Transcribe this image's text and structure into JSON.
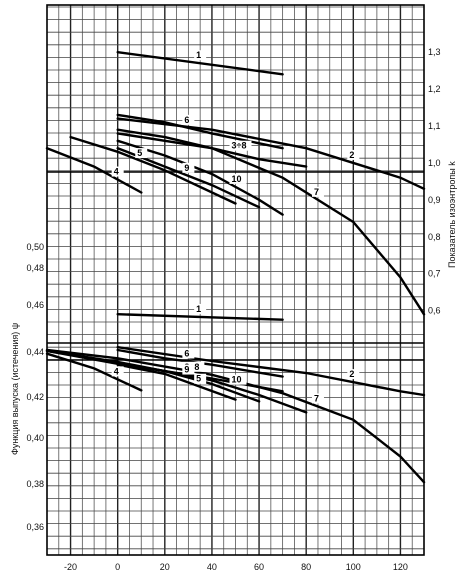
{
  "chart_data": {
    "type": "line",
    "title": "",
    "xlabel": "",
    "y_left_label": "Функция выпуска (истечения) ψ",
    "y_right_label": "Показатель изоэнтропы k",
    "x_range": [
      -30,
      130
    ],
    "x_ticks": [
      -20,
      0,
      20,
      40,
      60,
      80,
      100,
      120
    ],
    "y_left_ticks": [
      "0,50",
      "0,48",
      "0,46",
      "0,44",
      "0,42",
      "0,40",
      "0,38",
      "0,36"
    ],
    "y_right_ticks": [
      "1,3",
      "1,2",
      "1,1",
      "1,0",
      "0,9",
      "0,8",
      "0,7",
      "0,6"
    ],
    "k_axis_range": [
      0.58,
      1.36
    ],
    "psi_axis_range": [
      0.347,
      0.445
    ],
    "grid": true,
    "k_curves": [
      {
        "label": "1",
        "x": [
          0,
          70
        ],
        "y": [
          1.3,
          1.24
        ]
      },
      {
        "label": "2",
        "x": [
          0,
          40,
          80,
          120,
          130
        ],
        "y": [
          1.12,
          1.09,
          1.04,
          0.96,
          0.93
        ]
      },
      {
        "label": "6",
        "x": [
          0,
          20,
          40,
          70
        ],
        "y": [
          1.13,
          1.11,
          1.08,
          1.04
        ]
      },
      {
        "label": "3÷8",
        "x": [
          0,
          20,
          40,
          60,
          80
        ],
        "y": [
          1.09,
          1.07,
          1.04,
          1.01,
          0.99
        ]
      },
      {
        "label": "7",
        "x": [
          0,
          40,
          70,
          100,
          120,
          130
        ],
        "y": [
          1.08,
          1.04,
          0.96,
          0.84,
          0.69,
          0.59
        ]
      },
      {
        "label": "10",
        "x": [
          0,
          20,
          40,
          60,
          70
        ],
        "y": [
          1.06,
          1.02,
          0.97,
          0.9,
          0.86
        ]
      },
      {
        "label": "9",
        "x": [
          0,
          20,
          40,
          60
        ],
        "y": [
          1.04,
          0.99,
          0.94,
          0.88
        ]
      },
      {
        "label": "5",
        "x": [
          -20,
          0,
          20,
          50
        ],
        "y": [
          1.07,
          1.03,
          0.98,
          0.89
        ]
      },
      {
        "label": "4",
        "x": [
          -30,
          -10,
          10
        ],
        "y": [
          1.04,
          0.99,
          0.92
        ]
      }
    ],
    "psi_curves": [
      {
        "label": "1",
        "x": [
          0,
          70
        ],
        "y": [
          0.4645,
          0.4615
        ]
      },
      {
        "label": "2",
        "x": [
          0,
          40,
          80,
          120,
          130
        ],
        "y": [
          0.4465,
          0.439,
          0.4325,
          0.4225,
          0.4205
        ]
      },
      {
        "label": "6",
        "x": [
          0,
          20,
          40,
          70
        ],
        "y": [
          0.445,
          0.4405,
          0.437,
          0.4305
        ]
      },
      {
        "label": "3÷8",
        "x": [
          -30,
          0,
          20,
          40,
          70
        ],
        "y": [
          0.4445,
          0.4375,
          0.4335,
          0.4295,
          0.4225
        ]
      },
      {
        "label": "7",
        "x": [
          -30,
          0,
          40,
          70,
          100,
          120,
          130
        ],
        "y": [
          0.445,
          0.4405,
          0.4315,
          0.4215,
          0.407,
          0.387,
          0.373
        ]
      },
      {
        "label": "10",
        "x": [
          -30,
          0,
          40,
          60,
          80
        ],
        "y": [
          0.4445,
          0.4385,
          0.4285,
          0.4205,
          0.411
        ]
      },
      {
        "label": "9",
        "x": [
          0,
          20,
          40,
          60
        ],
        "y": [
          0.438,
          0.4335,
          0.4265,
          0.417
        ]
      },
      {
        "label": "5",
        "x": [
          0,
          20,
          50
        ],
        "y": [
          0.437,
          0.432,
          0.418
        ]
      },
      {
        "label": "4",
        "x": [
          -30,
          -10,
          10
        ],
        "y": [
          0.443,
          0.435,
          0.423
        ]
      }
    ]
  }
}
